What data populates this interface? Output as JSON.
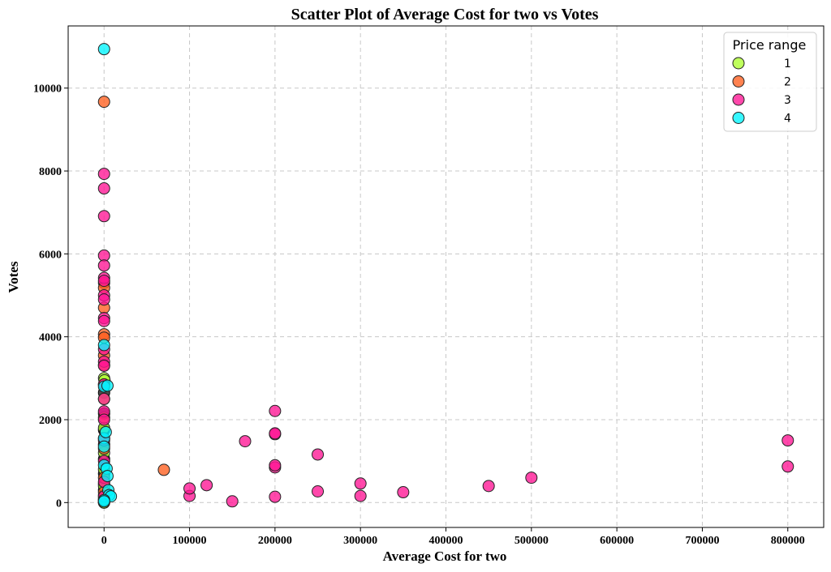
{
  "chart_data": {
    "type": "scatter",
    "title": "Scatter Plot of Average Cost for two vs Votes",
    "xlabel": "Average Cost for two",
    "ylabel": "Votes",
    "xlim": [
      -42000,
      842000
    ],
    "ylim": [
      -600,
      11500
    ],
    "xticks": [
      0,
      100000,
      200000,
      300000,
      400000,
      500000,
      600000,
      700000,
      800000
    ],
    "yticks": [
      0,
      2000,
      4000,
      6000,
      8000,
      10000
    ],
    "grid": true,
    "legend": {
      "title": "Price range",
      "placement": "top-right"
    },
    "series": [
      {
        "name": "1",
        "color": "#adff2f",
        "points": [
          [
            0,
            0
          ],
          [
            0,
            120
          ],
          [
            0,
            400
          ],
          [
            0,
            800
          ],
          [
            0,
            1200
          ],
          [
            0,
            1800
          ],
          [
            0,
            2500
          ],
          [
            0,
            3000
          ],
          [
            500,
            2950
          ]
        ]
      },
      {
        "name": "2",
        "color": "#ff5f1f",
        "points": [
          [
            0,
            9670
          ],
          [
            0,
            5300
          ],
          [
            0,
            5180
          ],
          [
            0,
            4700
          ],
          [
            0,
            4060
          ],
          [
            0,
            3980
          ],
          [
            0,
            3550
          ],
          [
            0,
            3320
          ],
          [
            0,
            2850
          ],
          [
            0,
            2050
          ],
          [
            0,
            1550
          ],
          [
            0,
            1300
          ],
          [
            0,
            600
          ],
          [
            0,
            250
          ],
          [
            0,
            50
          ],
          [
            70000,
            790
          ]
        ]
      },
      {
        "name": "3",
        "color": "#ff1493",
        "points": [
          [
            0,
            7930
          ],
          [
            0,
            7580
          ],
          [
            0,
            6910
          ],
          [
            0,
            5960
          ],
          [
            0,
            5720
          ],
          [
            0,
            5420
          ],
          [
            0,
            5350
          ],
          [
            0,
            5000
          ],
          [
            0,
            4900
          ],
          [
            0,
            4450
          ],
          [
            0,
            4380
          ],
          [
            0,
            3700
          ],
          [
            0,
            3400
          ],
          [
            0,
            3300
          ],
          [
            0,
            2850
          ],
          [
            0,
            2500
          ],
          [
            0,
            2200
          ],
          [
            0,
            2000
          ],
          [
            0,
            1500
          ],
          [
            0,
            1000
          ],
          [
            0,
            500
          ],
          [
            0,
            150
          ],
          [
            100000,
            160
          ],
          [
            100000,
            340
          ],
          [
            120000,
            420
          ],
          [
            150000,
            30
          ],
          [
            165000,
            1480
          ],
          [
            200000,
            140
          ],
          [
            200000,
            850
          ],
          [
            200000,
            900
          ],
          [
            200000,
            1650
          ],
          [
            200000,
            1670
          ],
          [
            200000,
            2210
          ],
          [
            250000,
            270
          ],
          [
            250000,
            1160
          ],
          [
            300000,
            160
          ],
          [
            300000,
            460
          ],
          [
            350000,
            250
          ],
          [
            450000,
            400
          ],
          [
            500000,
            600
          ],
          [
            800000,
            870
          ],
          [
            800000,
            1500
          ]
        ]
      },
      {
        "name": "4",
        "color": "#00f5ff",
        "points": [
          [
            0,
            10940
          ],
          [
            0,
            3800
          ],
          [
            0,
            2800
          ],
          [
            0,
            1550
          ],
          [
            0,
            1350
          ],
          [
            0,
            900
          ],
          [
            2000,
            1700
          ],
          [
            3000,
            820
          ],
          [
            4000,
            640
          ],
          [
            5000,
            300
          ],
          [
            6000,
            180
          ],
          [
            8000,
            150
          ],
          [
            4000,
            2820
          ],
          [
            0,
            60
          ],
          [
            0,
            30
          ]
        ]
      }
    ],
    "overplot_black": [
      [
        0,
        0
      ],
      [
        0,
        80
      ],
      [
        0,
        180
      ],
      [
        0,
        300
      ],
      [
        0,
        450
      ],
      [
        0,
        700
      ],
      [
        0,
        1050
      ],
      [
        0,
        1400
      ],
      [
        0,
        1750
      ],
      [
        0,
        2150
      ],
      [
        0,
        2650
      ]
    ]
  }
}
